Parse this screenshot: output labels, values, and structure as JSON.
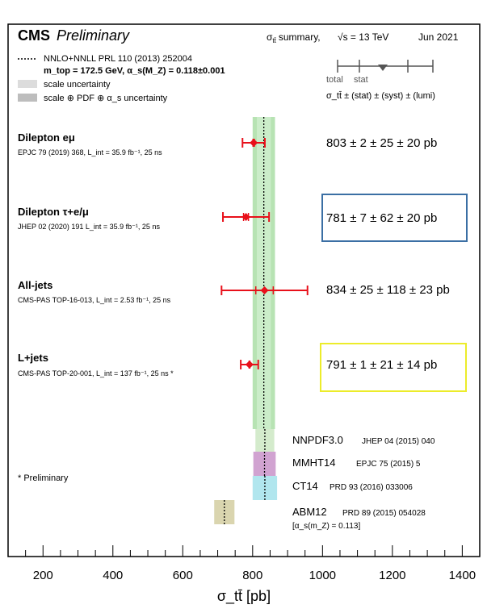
{
  "header": {
    "brand": "CMS",
    "preliminary": "Preliminary",
    "summary_symbol": "σ",
    "summary_sub": "tt̄",
    "summary_text": "summary,",
    "energy": "√s = 13 TeV",
    "date": "Jun 2021"
  },
  "legend": {
    "theory_line1": "NNLO+NNLL  PRL 110 (2013) 252004",
    "theory_line2": "m_top = 172.5 GeV, α_s(M_Z) = 0.118±0.001",
    "scale": "scale uncertainty",
    "scale_pdf": "scale ⊕ PDF ⊕ α_s uncertainty",
    "key_total": "total",
    "key_stat": "stat",
    "key_format": "σ_tt̄ ± (stat) ± (syst) ± (lumi)"
  },
  "footnote": "* Preliminary",
  "colors": {
    "marker": "#e8101a",
    "band_inner": "#dcdcdc",
    "band_outer": "#bdbdbd",
    "green_band": "#9fd99a",
    "nnpdf": "#cfe9c7",
    "mmht": "#cc99cc",
    "ct14": "#a8e3ec",
    "abm": "#d6d0a6",
    "box_blue": "#3b6fa4",
    "box_yellow": "#ecec2a"
  },
  "chart_data": {
    "type": "scatter",
    "xlabel": "σ_tt̄ [pb]",
    "xlim": [
      100,
      1450
    ],
    "xticks": [
      200,
      400,
      600,
      800,
      1000,
      1200,
      1400
    ],
    "xtick_labels": [
      "200",
      "400",
      "600",
      "800",
      "1000",
      "1200",
      "1400"
    ],
    "theory": {
      "central": 832,
      "scale_band": [
        812,
        852
      ],
      "total_band": [
        800,
        864
      ]
    },
    "measurements": [
      {
        "name": "Dilepton eμ",
        "ref": "EPJC 79 (2019) 368,  L_int = 35.9 fb⁻¹, 25 ns",
        "value": 803,
        "stat": 2,
        "syst": 25,
        "lumi": 20,
        "total": 32,
        "result": "803 ±  2 ± 25 ± 20 pb",
        "highlight": ""
      },
      {
        "name": "Dilepton τ+e/μ",
        "ref": "JHEP 02 (2020) 191 L_int = 35.9 fb⁻¹, 25 ns",
        "value": 781,
        "stat": 7,
        "syst": 62,
        "lumi": 20,
        "total": 66,
        "result": "781 ±  7 ± 62 ± 20 pb",
        "highlight": "blue"
      },
      {
        "name": "All-jets",
        "ref": "CMS-PAS TOP-16-013,  L_int = 2.53 fb⁻¹, 25 ns",
        "value": 834,
        "stat": 25,
        "syst": 118,
        "lumi": 23,
        "total": 123,
        "result": "834 ± 25 ± 118 ± 23 pb",
        "highlight": ""
      },
      {
        "name": "L+jets",
        "ref": "CMS-PAS TOP-20-001,  L_int = 137 fb⁻¹, 25 ns *",
        "value": 791,
        "stat": 1,
        "syst": 21,
        "lumi": 14,
        "total": 25,
        "result": "791 ±  1 ± 21 ± 14 pb",
        "highlight": "yellow"
      }
    ],
    "pdf_sets": [
      {
        "name": "NNPDF3.0",
        "ref": "JHEP 04 (2015) 040",
        "band": [
          808,
          862
        ],
        "central": 835,
        "color_key": "nnpdf"
      },
      {
        "name": "MMHT14",
        "ref": "EPJC 75 (2015) 5",
        "band": [
          802,
          866
        ],
        "central": 834,
        "color_key": "mmht"
      },
      {
        "name": "CT14",
        "ref": "PRD 93 (2016) 033006",
        "band": [
          800,
          870
        ],
        "central": 835,
        "color_key": "ct14"
      },
      {
        "name": "ABM12",
        "ref": "PRD 89 (2015) 054028",
        "band": [
          690,
          748
        ],
        "central": 719,
        "color_key": "abm",
        "note": "[α_s(m_Z) = 0.113]"
      }
    ]
  }
}
